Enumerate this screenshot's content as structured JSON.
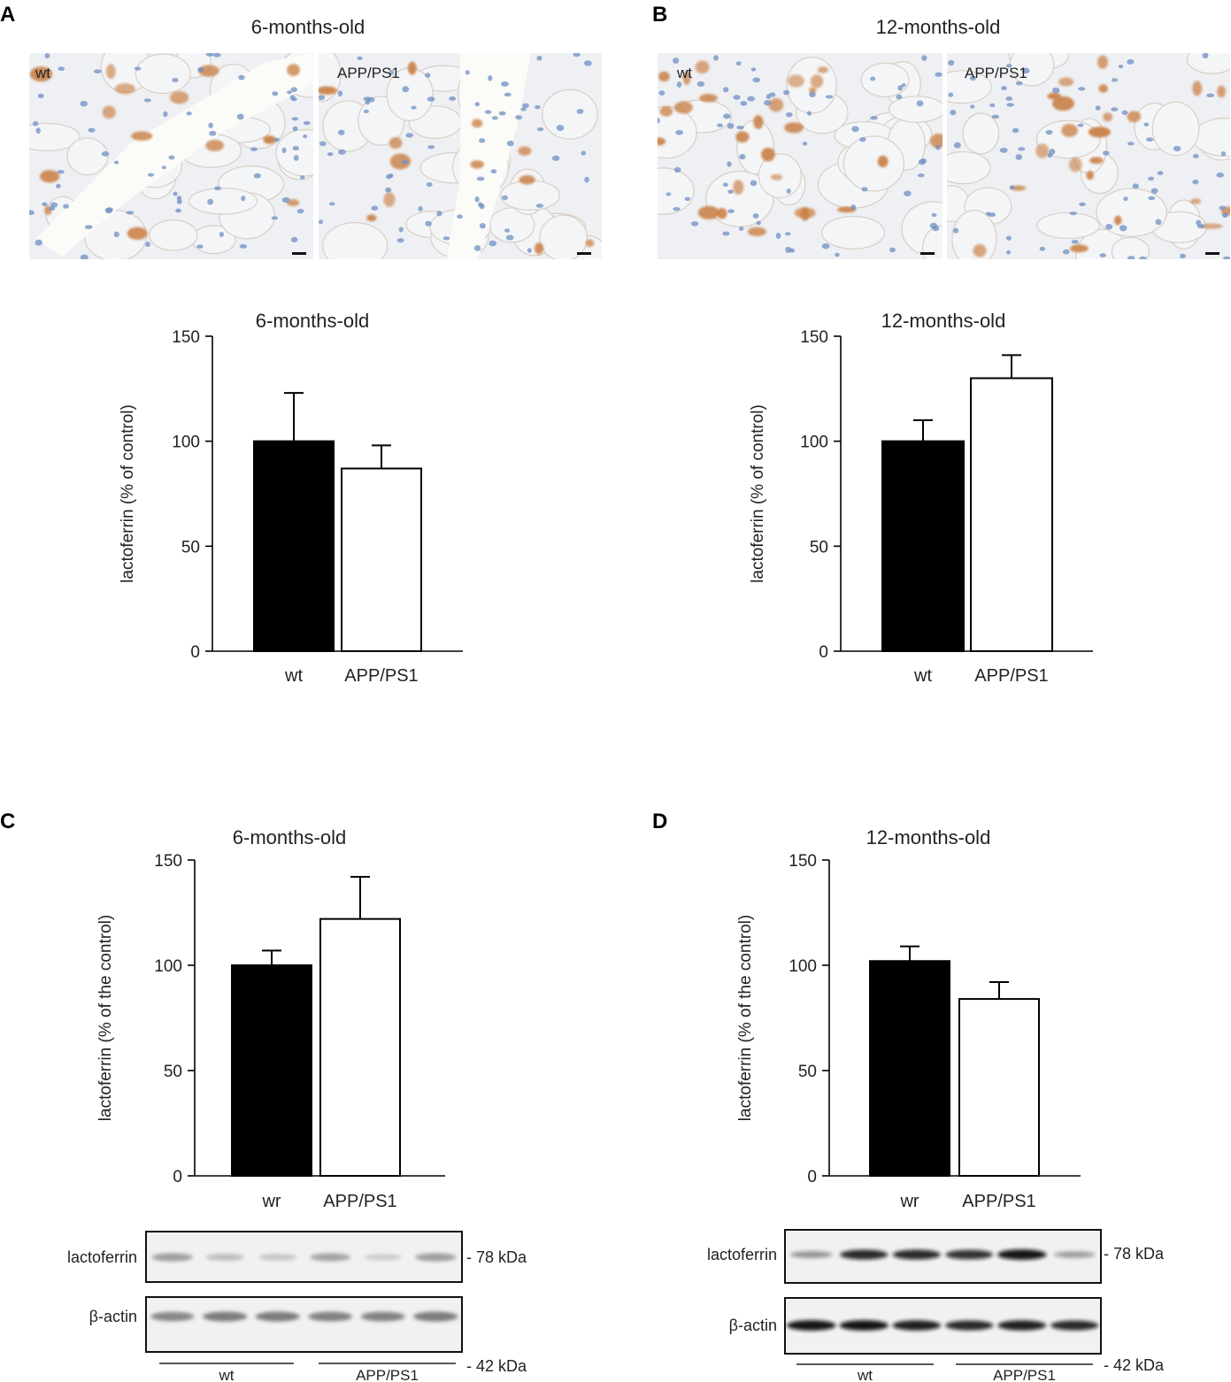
{
  "panels": {
    "A": {
      "letter": "A",
      "title": "6-months-old",
      "images": [
        {
          "label": "wt"
        },
        {
          "label": "APP/PS1"
        }
      ]
    },
    "B": {
      "letter": "B",
      "title": "12-months-old",
      "images": [
        {
          "label": "wt"
        },
        {
          "label": "APP/PS1"
        }
      ]
    },
    "C": {
      "letter": "C"
    },
    "D": {
      "letter": "D"
    }
  },
  "colors": {
    "wt_bar": "#000000",
    "app_bar": "#ffffff",
    "stain_brown": "#c87a3c",
    "nuclei_blue": "#6f8fc4"
  },
  "chart_data": [
    {
      "id": "A",
      "type": "bar",
      "title": "6-months-old",
      "xlabel": "",
      "ylabel": "lactoferrin (% of control)",
      "categories": [
        "wt",
        "APP/PS1"
      ],
      "values": [
        100,
        87
      ],
      "errors": [
        23,
        11
      ],
      "ylim": [
        0,
        150
      ],
      "yticks": [
        0,
        50,
        100,
        150
      ],
      "grid": false,
      "bar_colors": [
        "#000000",
        "#ffffff"
      ]
    },
    {
      "id": "B",
      "type": "bar",
      "title": "12-months-old",
      "xlabel": "",
      "ylabel": "lactoferrin (% of control)",
      "categories": [
        "wt",
        "APP/PS1"
      ],
      "values": [
        100,
        130
      ],
      "errors": [
        10,
        11
      ],
      "ylim": [
        0,
        150
      ],
      "yticks": [
        0,
        50,
        100,
        150
      ],
      "grid": false,
      "bar_colors": [
        "#000000",
        "#ffffff"
      ]
    },
    {
      "id": "C",
      "type": "bar",
      "title": "6-months-old",
      "xlabel": "",
      "ylabel": "lactoferrin (% of the control)",
      "categories": [
        "wr",
        "APP/PS1"
      ],
      "values": [
        100,
        122
      ],
      "errors": [
        7,
        20
      ],
      "ylim": [
        0,
        150
      ],
      "yticks": [
        0,
        50,
        100,
        150
      ],
      "grid": false,
      "bar_colors": [
        "#000000",
        "#ffffff"
      ]
    },
    {
      "id": "D",
      "type": "bar",
      "title": "12-months-old",
      "xlabel": "",
      "ylabel": "lactoferrin (% of the control)",
      "categories": [
        "wr",
        "APP/PS1"
      ],
      "values": [
        102,
        84
      ],
      "errors": [
        7,
        8
      ],
      "ylim": [
        0,
        150
      ],
      "yticks": [
        0,
        50,
        100,
        150
      ],
      "grid": false,
      "bar_colors": [
        "#000000",
        "#ffffff"
      ]
    }
  ],
  "blots": {
    "C": {
      "rows": [
        {
          "label": "lactoferrin",
          "marker": "- 78 kDa",
          "intensities": [
            0.55,
            0.28,
            0.22,
            0.5,
            0.15,
            0.55
          ]
        },
        {
          "label": "β-actin",
          "marker": "- 42 kDa",
          "intensities": [
            0.75,
            0.85,
            0.85,
            0.8,
            0.8,
            0.85
          ]
        }
      ],
      "groups": [
        "wt",
        "APP/PS1"
      ]
    },
    "D": {
      "rows": [
        {
          "label": "lactoferrin",
          "marker": "- 78 kDa",
          "intensities": [
            0.3,
            0.85,
            0.85,
            0.8,
            0.95,
            0.25
          ]
        },
        {
          "label": "β-actin",
          "marker": "- 42 kDa",
          "intensities": [
            0.95,
            0.95,
            0.9,
            0.85,
            0.9,
            0.85
          ]
        }
      ],
      "groups": [
        "wt",
        "APP/PS1"
      ]
    }
  }
}
